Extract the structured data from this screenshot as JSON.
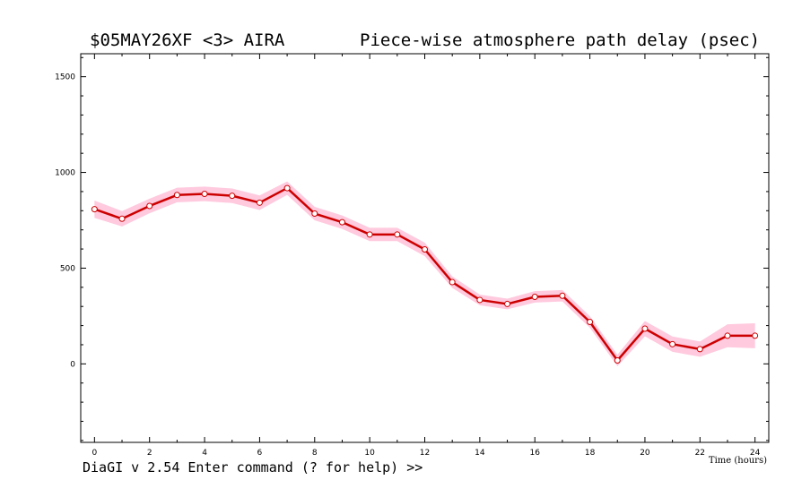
{
  "header": {
    "experiment": "$05MAY26XF <3>  AIRA",
    "plot_title": "Piece-wise atmosphere path delay (psec)"
  },
  "status_line": "DiaGI v 2.54  Enter command (? for help) >>",
  "colors": {
    "line": "#cc0000",
    "band": "#ffc0d8",
    "marker_fill": "#ffffff"
  },
  "chart_data": {
    "type": "line",
    "title": "Piece-wise atmosphere path delay (psec)",
    "xlabel": "Time (hours)",
    "ylabel": "",
    "xlim": [
      -0.5,
      24.5
    ],
    "ylim": [
      -410,
      1620
    ],
    "x_ticks": [
      0,
      2,
      4,
      6,
      8,
      10,
      12,
      14,
      16,
      18,
      20,
      22,
      24
    ],
    "y_ticks": [
      0,
      500,
      1000,
      1500
    ],
    "grid": false,
    "series": [
      {
        "x": [
          0,
          1,
          2,
          3,
          4,
          5,
          6,
          7,
          8,
          9,
          10,
          11,
          12,
          13,
          14,
          15,
          16,
          17,
          18,
          19,
          20,
          21,
          22,
          23,
          24
        ],
        "values": [
          808,
          758,
          825,
          882,
          888,
          878,
          842,
          918,
          785,
          740,
          676,
          676,
          598,
          427,
          334,
          313,
          350,
          356,
          219,
          18,
          184,
          103,
          77,
          147,
          147
        ],
        "error": [
          45,
          40,
          38,
          38,
          38,
          38,
          38,
          35,
          35,
          35,
          35,
          35,
          35,
          30,
          28,
          28,
          30,
          30,
          30,
          30,
          40,
          40,
          40,
          60,
          65
        ]
      }
    ]
  }
}
